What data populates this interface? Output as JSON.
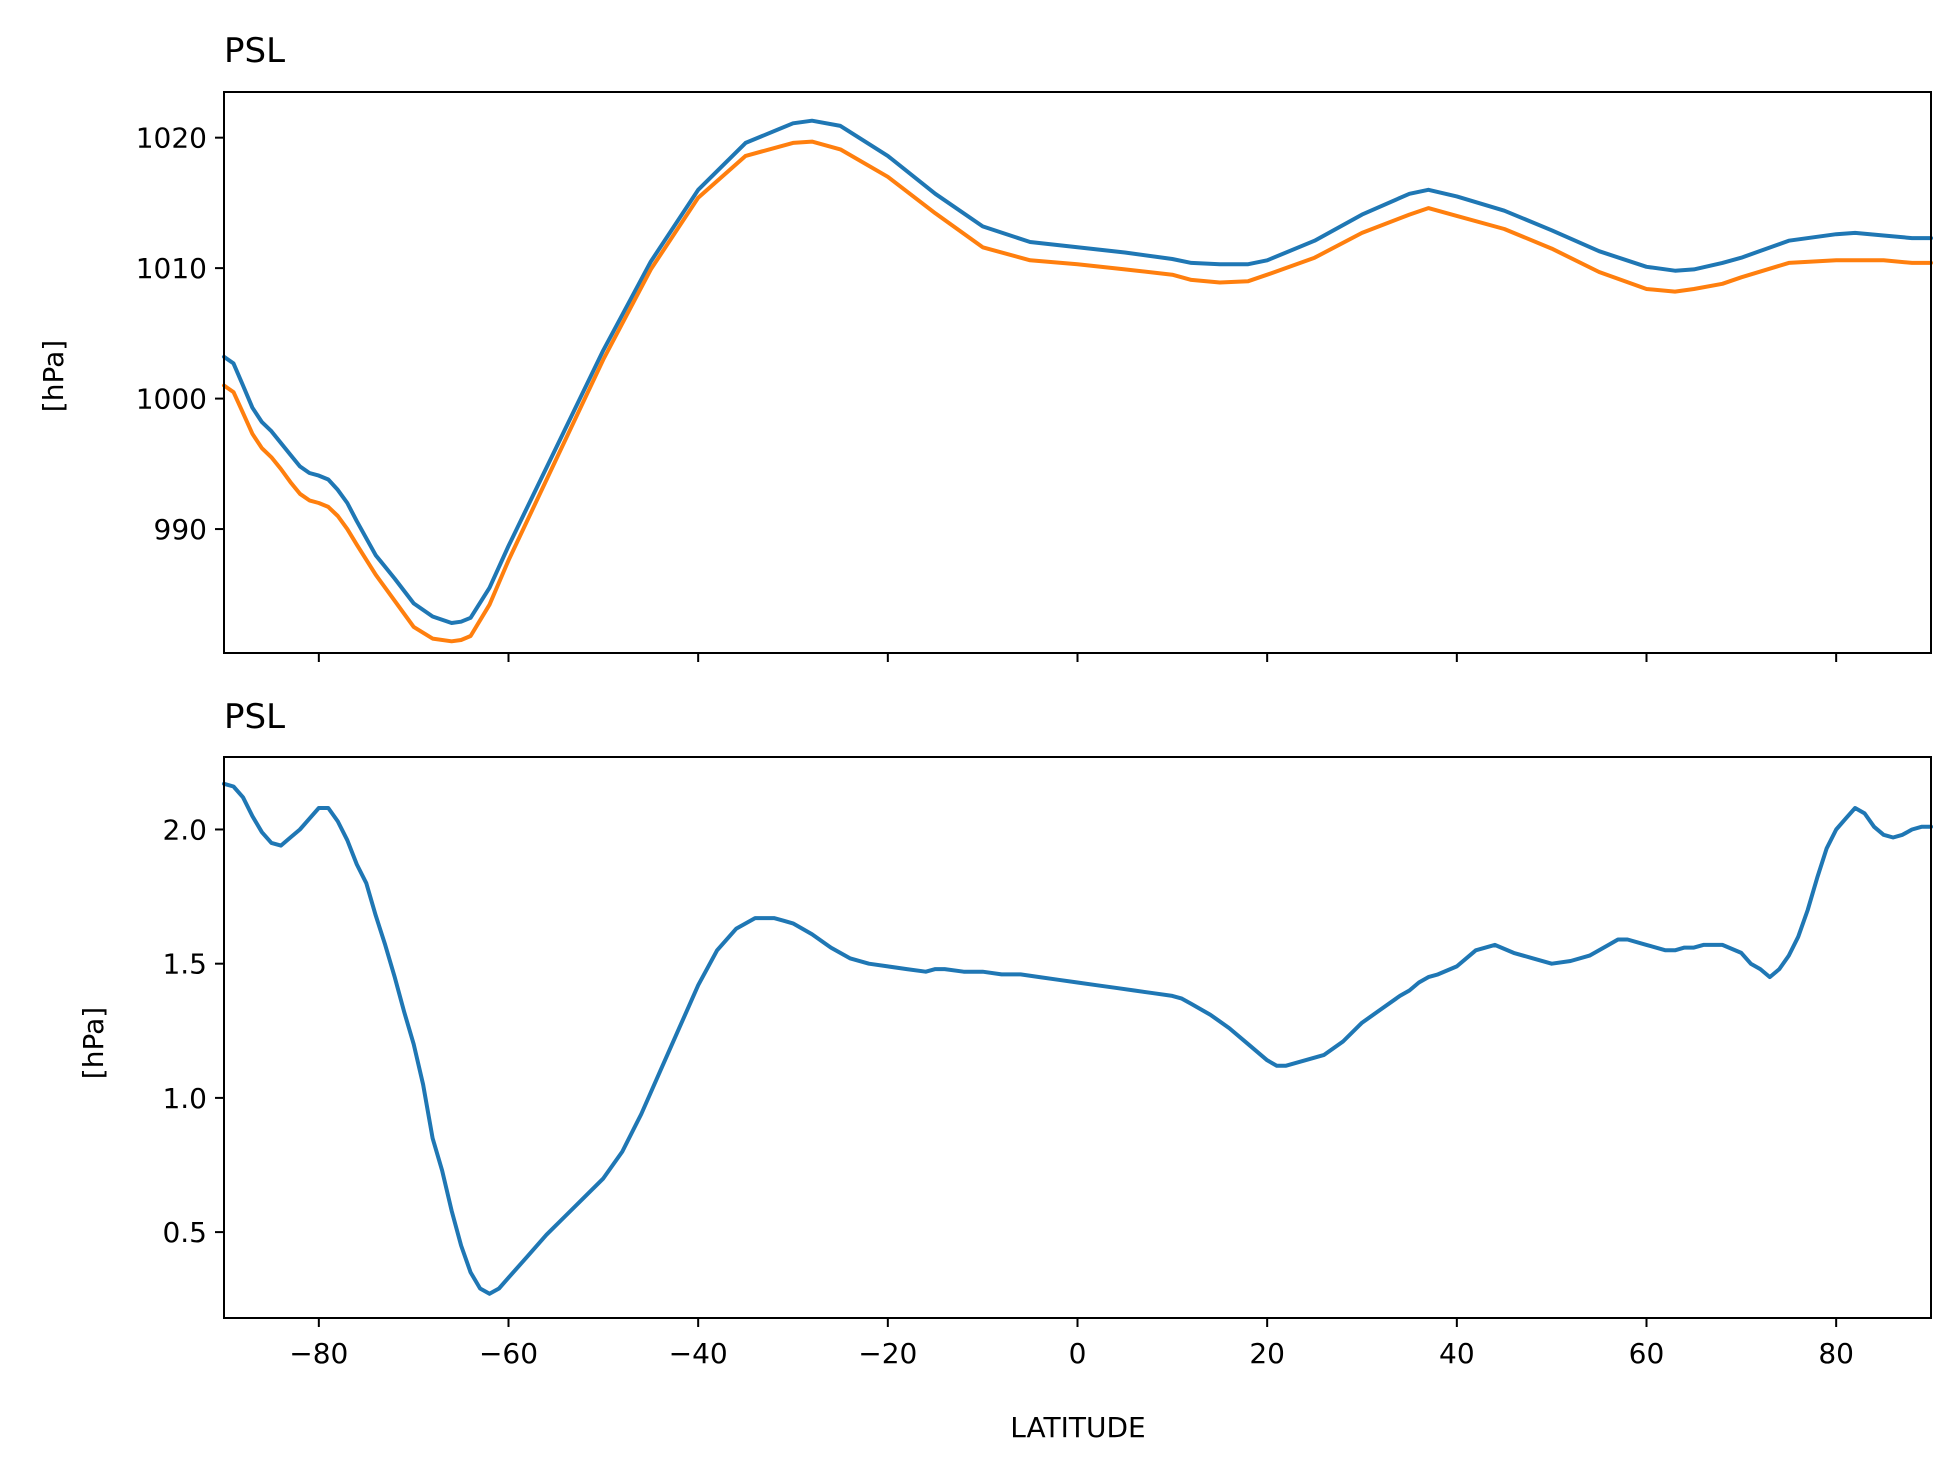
{
  "chart_data": [
    {
      "type": "line",
      "title": "PSL",
      "ylabel": "[hPa]",
      "xlabel": "",
      "xlim": [
        -90,
        90
      ],
      "ylim": [
        980.5,
        1023.5
      ],
      "yticks": [
        990,
        1000,
        1010,
        1020
      ],
      "ytick_labels": [
        "990",
        "1000",
        "1010",
        "1020"
      ],
      "xticks": [
        -80,
        -60,
        -40,
        -20,
        0,
        20,
        40,
        60,
        80
      ],
      "show_xtick_labels": false,
      "grid": false,
      "series": [
        {
          "color": "#1f77b4",
          "x": [
            -90,
            -89,
            -88,
            -87,
            -86,
            -85,
            -84,
            -83,
            -82,
            -81,
            -80,
            -79,
            -78,
            -77,
            -76,
            -74,
            -72,
            -70,
            -68,
            -66,
            -65,
            -64,
            -62,
            -60,
            -55,
            -50,
            -45,
            -40,
            -35,
            -30,
            -28,
            -25,
            -20,
            -15,
            -10,
            -5,
            0,
            5,
            10,
            12,
            15,
            18,
            20,
            25,
            30,
            35,
            37,
            40,
            45,
            50,
            55,
            60,
            63,
            65,
            68,
            70,
            75,
            80,
            82,
            85,
            88,
            90
          ],
          "values": [
            1003.2,
            1002.7,
            1001.0,
            999.3,
            998.2,
            997.5,
            996.6,
            995.7,
            994.8,
            994.3,
            994.1,
            993.8,
            993.0,
            992.0,
            990.6,
            988.0,
            986.2,
            984.3,
            983.3,
            982.8,
            982.9,
            983.2,
            985.5,
            988.7,
            996.2,
            1003.7,
            1010.5,
            1016.0,
            1019.6,
            1021.1,
            1021.3,
            1020.9,
            1018.6,
            1015.7,
            1013.2,
            1012.0,
            1011.6,
            1011.2,
            1010.7,
            1010.4,
            1010.3,
            1010.3,
            1010.6,
            1012.1,
            1014.1,
            1015.7,
            1016.0,
            1015.5,
            1014.4,
            1012.9,
            1011.3,
            1010.1,
            1009.8,
            1009.9,
            1010.4,
            1010.8,
            1012.1,
            1012.6,
            1012.7,
            1012.5,
            1012.3,
            1012.3
          ]
        },
        {
          "color": "#ff7f0e",
          "x": [
            -90,
            -89,
            -88,
            -87,
            -86,
            -85,
            -84,
            -83,
            -82,
            -81,
            -80,
            -79,
            -78,
            -77,
            -76,
            -74,
            -72,
            -70,
            -68,
            -66,
            -65,
            -64,
            -62,
            -60,
            -55,
            -50,
            -45,
            -40,
            -35,
            -30,
            -28,
            -25,
            -20,
            -15,
            -10,
            -5,
            0,
            5,
            10,
            12,
            15,
            18,
            20,
            25,
            30,
            35,
            37,
            40,
            45,
            50,
            55,
            60,
            63,
            65,
            68,
            70,
            75,
            80,
            82,
            85,
            88,
            90
          ],
          "values": [
            1001.0,
            1000.5,
            998.9,
            997.3,
            996.2,
            995.5,
            994.6,
            993.6,
            992.7,
            992.2,
            992.0,
            991.7,
            991.0,
            990.0,
            988.8,
            986.5,
            984.5,
            982.5,
            981.6,
            981.4,
            981.5,
            981.8,
            984.2,
            987.6,
            995.3,
            1003.0,
            1009.9,
            1015.4,
            1018.6,
            1019.6,
            1019.7,
            1019.1,
            1017.0,
            1014.2,
            1011.6,
            1010.6,
            1010.3,
            1009.9,
            1009.5,
            1009.1,
            1008.9,
            1009.0,
            1009.5,
            1010.8,
            1012.7,
            1014.1,
            1014.6,
            1014.0,
            1013.0,
            1011.5,
            1009.7,
            1008.4,
            1008.2,
            1008.4,
            1008.8,
            1009.3,
            1010.4,
            1010.6,
            1010.6,
            1010.6,
            1010.4,
            1010.4
          ]
        }
      ]
    },
    {
      "type": "line",
      "title": "PSL",
      "ylabel": "[hPa]",
      "xlabel": "LATITUDE",
      "xlim": [
        -90,
        90
      ],
      "ylim": [
        0.18,
        2.27
      ],
      "yticks": [
        0.5,
        1.0,
        1.5,
        2.0
      ],
      "ytick_labels": [
        "0.5",
        "1.0",
        "1.5",
        "2.0"
      ],
      "xticks": [
        -80,
        -60,
        -40,
        -20,
        0,
        20,
        40,
        60,
        80
      ],
      "xtick_labels": [
        "−80",
        "−60",
        "−40",
        "−20",
        "0",
        "20",
        "40",
        "60",
        "80"
      ],
      "grid": false,
      "series": [
        {
          "color": "#1f77b4",
          "x": [
            -90,
            -89,
            -88,
            -87,
            -86,
            -85,
            -84,
            -83,
            -82,
            -81,
            -80,
            -79,
            -78,
            -77,
            -76,
            -75,
            -74,
            -73,
            -72,
            -71,
            -70,
            -69,
            -68,
            -67,
            -66,
            -65,
            -64,
            -63,
            -62,
            -61,
            -60,
            -58,
            -56,
            -54,
            -52,
            -50,
            -48,
            -46,
            -44,
            -42,
            -40,
            -38,
            -36,
            -34,
            -32,
            -31,
            -30,
            -28,
            -26,
            -24,
            -22,
            -20,
            -18,
            -16,
            -15,
            -14,
            -12,
            -10,
            -8,
            -6,
            -4,
            -2,
            0,
            2,
            4,
            6,
            8,
            10,
            11,
            12,
            14,
            16,
            18,
            20,
            21,
            22,
            24,
            26,
            28,
            30,
            32,
            34,
            35,
            36,
            37,
            38,
            40,
            42,
            44,
            46,
            48,
            50,
            52,
            54,
            56,
            57,
            58,
            60,
            62,
            63,
            64,
            65,
            66,
            67,
            68,
            70,
            71,
            72,
            73,
            74,
            75,
            76,
            77,
            78,
            79,
            80,
            81,
            82,
            83,
            84,
            85,
            86,
            87,
            88,
            89,
            90
          ],
          "values": [
            2.17,
            2.16,
            2.12,
            2.05,
            1.99,
            1.95,
            1.94,
            1.97,
            2.0,
            2.04,
            2.08,
            2.08,
            2.03,
            1.96,
            1.87,
            1.8,
            1.68,
            1.57,
            1.45,
            1.32,
            1.2,
            1.05,
            0.85,
            0.73,
            0.58,
            0.45,
            0.35,
            0.29,
            0.27,
            0.29,
            0.33,
            0.41,
            0.49,
            0.56,
            0.63,
            0.7,
            0.8,
            0.94,
            1.1,
            1.26,
            1.42,
            1.55,
            1.63,
            1.67,
            1.67,
            1.66,
            1.65,
            1.61,
            1.56,
            1.52,
            1.5,
            1.49,
            1.48,
            1.47,
            1.48,
            1.48,
            1.47,
            1.47,
            1.46,
            1.46,
            1.45,
            1.44,
            1.43,
            1.42,
            1.41,
            1.4,
            1.39,
            1.38,
            1.37,
            1.35,
            1.31,
            1.26,
            1.2,
            1.14,
            1.12,
            1.12,
            1.14,
            1.16,
            1.21,
            1.28,
            1.33,
            1.38,
            1.4,
            1.43,
            1.45,
            1.46,
            1.49,
            1.55,
            1.57,
            1.54,
            1.52,
            1.5,
            1.51,
            1.53,
            1.57,
            1.59,
            1.59,
            1.57,
            1.55,
            1.55,
            1.56,
            1.56,
            1.57,
            1.57,
            1.57,
            1.54,
            1.5,
            1.48,
            1.45,
            1.48,
            1.53,
            1.6,
            1.7,
            1.82,
            1.93,
            2.0,
            2.04,
            2.08,
            2.06,
            2.01,
            1.98,
            1.97,
            1.98,
            2.0,
            2.01,
            2.01
          ]
        }
      ]
    }
  ]
}
